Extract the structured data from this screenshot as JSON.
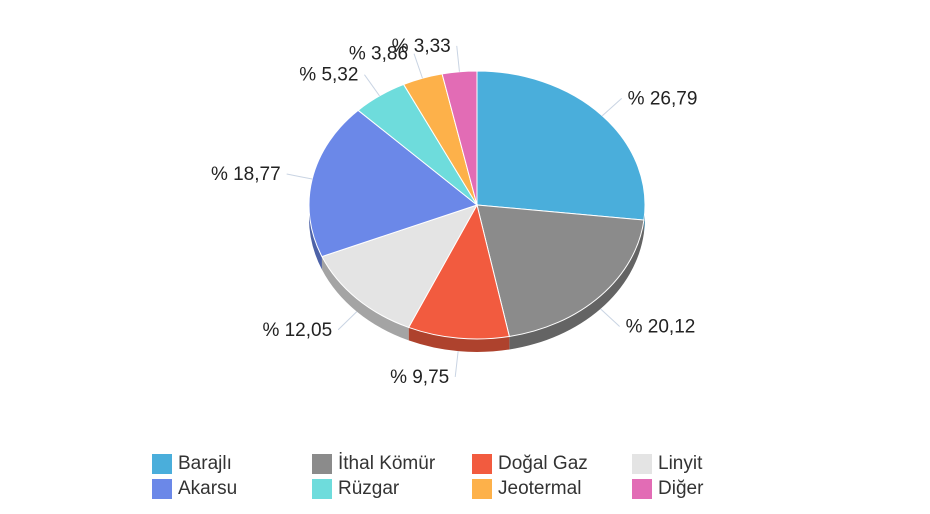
{
  "chart_data": {
    "type": "pie",
    "style": "3d",
    "label_prefix": "% ",
    "slices": [
      {
        "name": "Barajlı",
        "value": 26.79,
        "label": "% 26,79",
        "color": "#4AAEDB"
      },
      {
        "name": "İthal Kömür",
        "value": 20.12,
        "label": "% 20,12",
        "color": "#8B8B8B"
      },
      {
        "name": "Doğal Gaz",
        "value": 9.75,
        "label": "% 9,75",
        "color": "#F25B3F"
      },
      {
        "name": "Linyit",
        "value": 12.05,
        "label": "% 12,05",
        "color": "#E4E4E4"
      },
      {
        "name": "Akarsu",
        "value": 18.77,
        "label": "% 18,77",
        "color": "#6B88E8"
      },
      {
        "name": "Rüzgar",
        "value": 5.32,
        "label": "% 5,32",
        "color": "#6EDCDC"
      },
      {
        "name": "Jeotermal",
        "value": 3.86,
        "label": "% 3,86",
        "color": "#FDB14A"
      },
      {
        "name": "Diğer",
        "value": 3.33,
        "label": "% 3,33",
        "color": "#E26CB5"
      }
    ],
    "legend": {
      "placement": "bottom",
      "items": [
        {
          "name": "Barajlı",
          "color": "#4AAEDB"
        },
        {
          "name": "İthal Kömür",
          "color": "#8B8B8B"
        },
        {
          "name": "Doğal Gaz",
          "color": "#F25B3F"
        },
        {
          "name": "Linyit",
          "color": "#E4E4E4"
        },
        {
          "name": "Akarsu",
          "color": "#6B88E8"
        },
        {
          "name": "Rüzgar",
          "color": "#6EDCDC"
        },
        {
          "name": "Jeotermal",
          "color": "#FDB14A"
        },
        {
          "name": "Diğer",
          "color": "#E26CB5"
        }
      ]
    }
  }
}
